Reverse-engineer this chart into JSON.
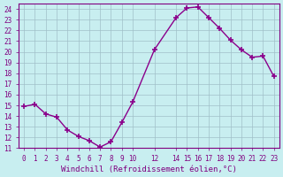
{
  "x": [
    0,
    1,
    2,
    3,
    4,
    5,
    6,
    7,
    8,
    9,
    10,
    12,
    14,
    15,
    16,
    17,
    18,
    19,
    20,
    21,
    22,
    23
  ],
  "y": [
    14.9,
    15.1,
    14.2,
    13.9,
    12.7,
    12.1,
    11.7,
    11.1,
    11.6,
    13.4,
    15.3,
    20.2,
    23.2,
    24.1,
    24.2,
    23.2,
    22.2,
    21.1,
    20.2,
    19.5,
    19.6,
    17.7
  ],
  "line_color": "#8B008B",
  "marker_color": "#8B008B",
  "bg_color": "#C8EEF0",
  "grid_color": "#A0C0C8",
  "xlabel": "Windchill (Refroidissement éolien,°C)",
  "ylabel_ticks": [
    11,
    12,
    13,
    14,
    15,
    16,
    17,
    18,
    19,
    20,
    21,
    22,
    23,
    24
  ],
  "xlim": [
    -0.5,
    23.5
  ],
  "ylim": [
    11,
    24.5
  ],
  "xticks": [
    0,
    1,
    2,
    3,
    4,
    5,
    6,
    7,
    8,
    9,
    10,
    12,
    14,
    15,
    16,
    17,
    18,
    19,
    20,
    21,
    22,
    23
  ],
  "xtick_labels": [
    "0",
    "1",
    "2",
    "3",
    "4",
    "5",
    "6",
    "7",
    "8",
    "9",
    "10",
    "12",
    "14",
    "15",
    "16",
    "17",
    "18",
    "19",
    "20",
    "21",
    "22",
    "23"
  ],
  "tick_color": "#800080",
  "axis_label_color": "#800080"
}
